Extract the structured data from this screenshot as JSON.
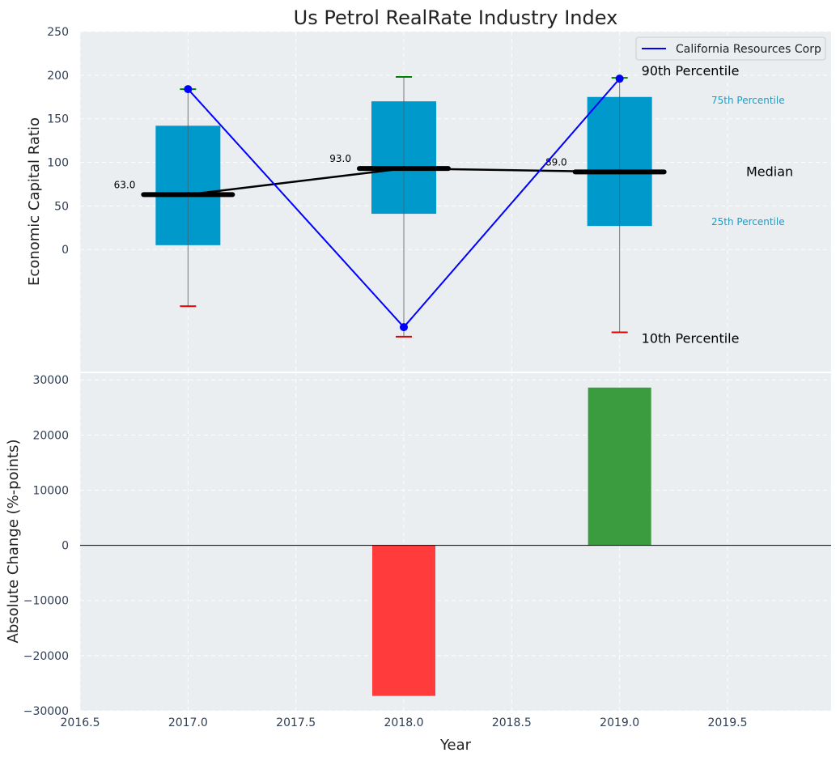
{
  "title": "Us Petrol RealRate Industry Index",
  "chart_data": [
    {
      "type": "box",
      "name": "top-panel",
      "ylabel": "Economic Capital Ratio",
      "ylim": [
        -140,
        250
      ],
      "yticks": [
        0,
        50,
        100,
        150,
        200,
        250
      ],
      "xlim": [
        2016.5,
        2019.98
      ],
      "legend": {
        "position": "top-right",
        "label": "California Resources Corp"
      },
      "years": [
        2017,
        2018,
        2019
      ],
      "p10": [
        -65,
        -100,
        -95
      ],
      "p25": [
        5,
        41,
        27
      ],
      "median": [
        63,
        93,
        89
      ],
      "median_labels": [
        "63.0",
        "93.0",
        "89.0"
      ],
      "p75": [
        142,
        170,
        175
      ],
      "p90": [
        184,
        198,
        197
      ],
      "company_values": [
        184,
        -89,
        196
      ],
      "annotations": {
        "p90": "90th Percentile",
        "p75": "75th Percentile",
        "median": "Median",
        "p25": "25th Percentile",
        "p10": "10th Percentile"
      }
    },
    {
      "type": "bar",
      "name": "bottom-panel",
      "xlabel": "Year",
      "ylabel": "Absolute Change (%-points)",
      "ylim": [
        -30000,
        31500
      ],
      "yticks": [
        -30000,
        -20000,
        -10000,
        0,
        10000,
        20000,
        30000
      ],
      "ytick_labels": [
        "−30000",
        "−20000",
        "−10000",
        "0",
        "10000",
        "20000",
        "30000"
      ],
      "xticks": [
        2016.5,
        2017.0,
        2017.5,
        2018.0,
        2018.5,
        2019.0,
        2019.5
      ],
      "xtick_labels": [
        "2016.5",
        "2017.0",
        "2017.5",
        "2018.0",
        "2018.5",
        "2019.0",
        "2019.5"
      ],
      "categories": [
        2018,
        2019
      ],
      "values": [
        -27300,
        28600
      ]
    }
  ],
  "colors": {
    "background": "#eaeef0",
    "box": "#0099cc",
    "company_line": "#0000ff",
    "median_line": "#000000",
    "p90_whisker": "#008000",
    "p10_whisker": "#e00000",
    "bar_positive": "#3a9c3e",
    "bar_negative": "#ff3b3b",
    "annotation_quartile": "#1e9cc4"
  }
}
